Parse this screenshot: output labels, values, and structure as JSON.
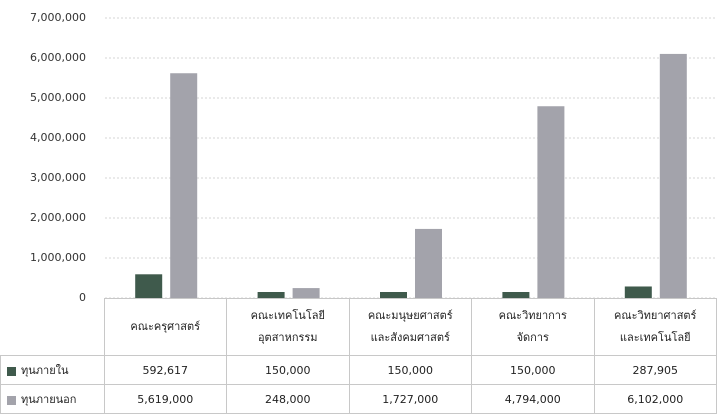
{
  "chart_data": {
    "type": "bar",
    "categories": [
      "คณะครุศาสตร์",
      "คณะเทคโนโลยี\nอุตสาหกรรม",
      "คณะมนุษยศาสตร์\nและสังคมศาสตร์",
      "คณะวิทยาการ\nจัดการ",
      "คณะวิทยาศาสตร์\nและเทคโนโลยี"
    ],
    "series": [
      {
        "name": "ทุนภายใน",
        "color": "#3f5a4c",
        "values": [
          592617,
          150000,
          150000,
          150000,
          287905
        ],
        "value_labels": [
          "592,617",
          "150,000",
          "150,000",
          "150,000",
          "287,905"
        ]
      },
      {
        "name": "ทุนภายนอก",
        "color": "#a3a3ab",
        "values": [
          5619000,
          248000,
          1727000,
          4794000,
          6102000
        ],
        "value_labels": [
          "5,619,000",
          "248,000",
          "1,727,000",
          "4,794,000",
          "6,102,000"
        ]
      }
    ],
    "ylim": [
      0,
      7000000
    ],
    "yticks": [
      0,
      {
        "value": 1000000,
        "label": "1,000,000"
      },
      {
        "value": 2000000,
        "label": "2,000,000"
      },
      {
        "value": 3000000,
        "label": "3,000,000"
      },
      {
        "value": 4000000,
        "label": "4,000,000"
      },
      {
        "value": 5000000,
        "label": "5,000,000"
      },
      {
        "value": 6000000,
        "label": "6,000,000"
      },
      {
        "value": 7000000,
        "label": "7,000,000"
      }
    ],
    "grid": true
  }
}
